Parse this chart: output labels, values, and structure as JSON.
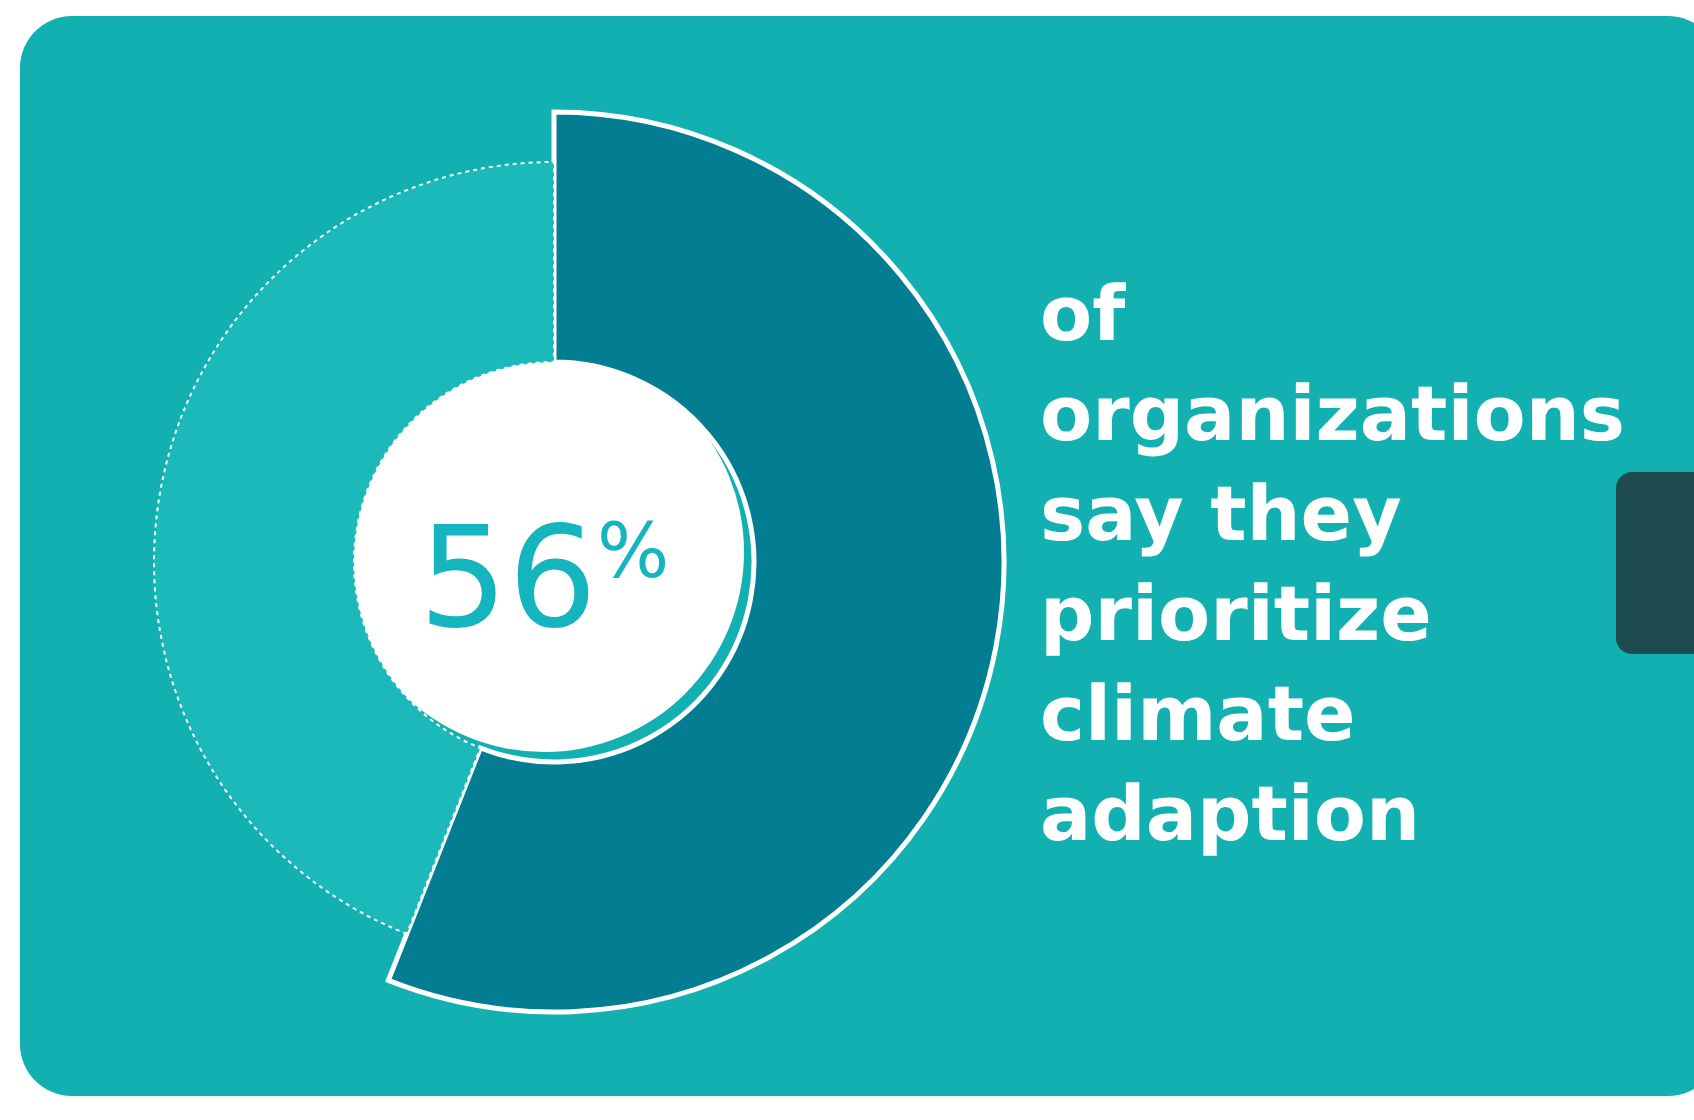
{
  "chart_data": {
    "type": "donut",
    "title": "of organizations say they prioritize climate adaption",
    "categories": [
      null,
      null
    ],
    "values": [
      56,
      44
    ],
    "colors": [
      "#037d91",
      "#1bb9b9"
    ],
    "value_labels": [
      "56$^{%}$",
      null
    ]
  }
}
